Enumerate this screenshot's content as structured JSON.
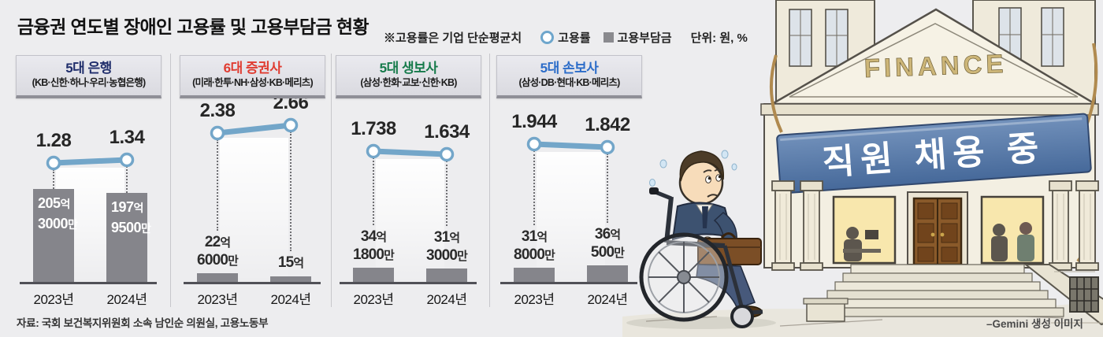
{
  "header": {
    "title": "금융권 연도별 장애인 고용률 및 고용부담금 현황",
    "note": "※고용률은 기업 단순평균치",
    "legend": [
      {
        "icon": "circle",
        "label": "고용률"
      },
      {
        "icon": "square",
        "label": "고용부담금"
      }
    ],
    "unit": "단위: 원, %"
  },
  "colors": {
    "line": "#73a6c9",
    "marker_fill": "#ffffff",
    "bar": "#85858b",
    "banner": "#4f74a8",
    "panel_header_bg": "#e2e2e8"
  },
  "chart_data": {
    "type": "line+bar",
    "x": [
      "2023년",
      "2024년"
    ],
    "legend": [
      "고용률",
      "고용부담금"
    ],
    "units": "원, %",
    "panels": [
      {
        "title": "5대 은행",
        "title_color": "#1f2d6b",
        "subtitle": "(KB·신한·하나·우리·농협은행)",
        "rates": [
          1.28,
          1.34
        ],
        "rate_labels": [
          "1.28",
          "1.34"
        ],
        "levy_100m_won": [
          205.3,
          197.95
        ],
        "levy_labels": [
          [
            "205억",
            "3000만"
          ],
          [
            "197억",
            "9500만"
          ]
        ],
        "levy_in_bar": true
      },
      {
        "title": "6대 증권사",
        "title_color": "#e03c31",
        "subtitle": "(미래·한투·NH·삼성·KB·메리츠)",
        "rates": [
          2.38,
          2.66
        ],
        "rate_labels": [
          "2.38",
          "2.66"
        ],
        "levy_100m_won": [
          22.6,
          15
        ],
        "levy_labels": [
          [
            "22억",
            "6000만"
          ],
          [
            "15억"
          ]
        ],
        "levy_in_bar": false
      },
      {
        "title": "5대 생보사",
        "title_color": "#157a4a",
        "subtitle": "(삼성·한화·교보·신한·KB)",
        "rates": [
          1.738,
          1.634
        ],
        "rate_labels": [
          "1.738",
          "1.634"
        ],
        "levy_100m_won": [
          34.18,
          31.3
        ],
        "levy_labels": [
          [
            "34억",
            "1800만"
          ],
          [
            "31억",
            "3000만"
          ]
        ],
        "levy_in_bar": false
      },
      {
        "title": "5대 손보사",
        "title_color": "#2b6cc8",
        "subtitle": "(삼성·DB·현대·KB·메리츠)",
        "rates": [
          1.944,
          1.842
        ],
        "rate_labels": [
          "1.944",
          "1.842"
        ],
        "levy_100m_won": [
          31.8,
          36.05
        ],
        "levy_labels": [
          [
            "31억",
            "8000만"
          ],
          [
            "36억",
            "500만"
          ]
        ],
        "levy_in_bar": false
      }
    ]
  },
  "source": "자료: 국회 보건복지위원회 소속 남인순 의원실, 고용노동부",
  "illustration": {
    "building_sign": "FINANCE",
    "banner_text": "직원 채용 중",
    "caption": "–Gemini 생성 이미지"
  }
}
